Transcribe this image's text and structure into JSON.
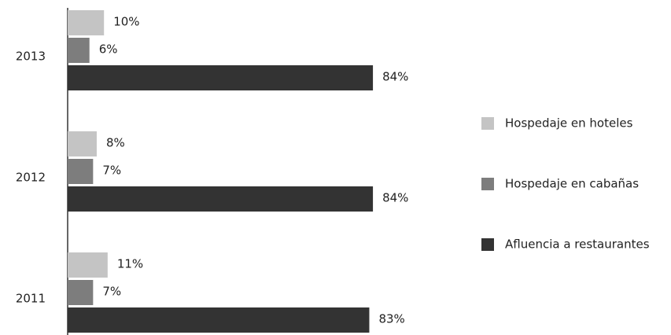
{
  "chart_data": {
    "type": "hbar",
    "categories": [
      "2013",
      "2012",
      "2011"
    ],
    "series": [
      {
        "name": "Hospedaje en hoteles",
        "color": "#c4c4c4",
        "values": [
          10,
          8,
          11
        ],
        "value_labels": [
          "10%",
          "8%",
          "11%"
        ]
      },
      {
        "name": "Hospedaje en cabañas",
        "color": "#7d7d7d",
        "values": [
          6,
          7,
          7
        ],
        "value_labels": [
          "6%",
          "7%",
          "7%"
        ]
      },
      {
        "name": "Afluencia a restaurantes",
        "color": "#333333",
        "values": [
          84,
          84,
          83
        ],
        "value_labels": [
          "84%",
          "84%",
          "83%"
        ]
      }
    ],
    "xlim": [
      0,
      100
    ],
    "legend": "right"
  }
}
